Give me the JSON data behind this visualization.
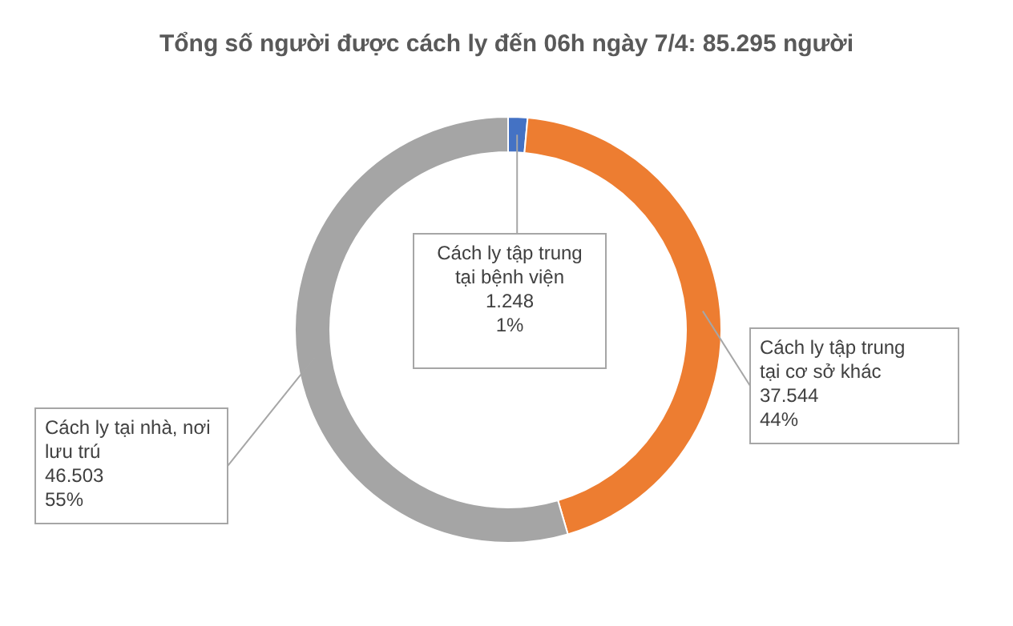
{
  "chart_data": {
    "type": "donut",
    "title": "Tổng số người được cách ly đến 06h ngày 7/4: 85.295 người",
    "categories": [
      "Cách ly tập trung tại bệnh viện",
      "Cách ly tập trung tại cơ sở khác",
      "Cách ly tại nhà, nơi lưu trú"
    ],
    "values": [
      1248,
      37544,
      46503
    ],
    "colors": [
      "#4472c4",
      "#ed7d31",
      "#a5a5a5"
    ],
    "value_labels": [
      "1.248\n1%",
      "37.544\n44%",
      "46.503\n55%"
    ]
  }
}
